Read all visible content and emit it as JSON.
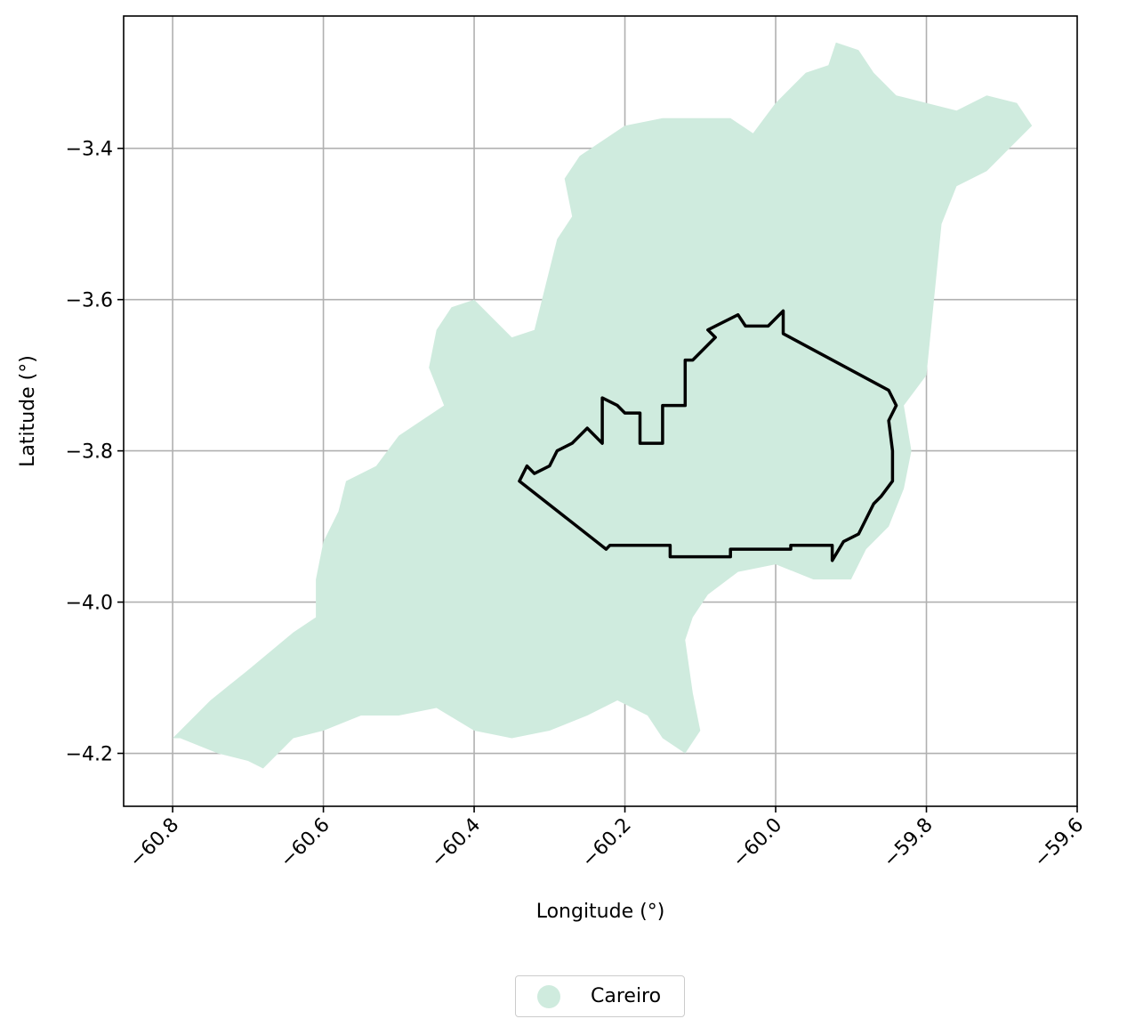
{
  "chart_data": {
    "type": "map",
    "xlabel": "Longitude (°)",
    "ylabel": "Latitude (°)",
    "xlim": [
      -60.865,
      -59.6
    ],
    "ylim": [
      -4.27,
      -3.225
    ],
    "x_ticks": [
      -60.8,
      -60.6,
      -60.4,
      -60.2,
      -60.0,
      -59.8,
      -59.6
    ],
    "x_tick_labels": [
      "−60.8",
      "−60.6",
      "−60.4",
      "−60.2",
      "−60.0",
      "−59.8",
      "−59.6"
    ],
    "y_ticks": [
      -3.4,
      -3.6,
      -3.8,
      -4.0,
      -4.2
    ],
    "y_tick_labels": [
      "−3.4",
      "−3.6",
      "−3.8",
      "−4.0",
      "−4.2"
    ],
    "grid": true,
    "legend_position": "bottom-center",
    "legend": [
      {
        "label": "Careiro",
        "color": "#cfebde"
      }
    ],
    "region_fill_color": "#cfebde",
    "boundary_color": "#000000",
    "region_outline": [
      [
        -60.8,
        -4.18
      ],
      [
        -60.79,
        -4.18
      ],
      [
        -60.74,
        -4.2
      ],
      [
        -60.7,
        -4.21
      ],
      [
        -60.68,
        -4.22
      ],
      [
        -60.64,
        -4.18
      ],
      [
        -60.6,
        -4.17
      ],
      [
        -60.55,
        -4.15
      ],
      [
        -60.5,
        -4.15
      ],
      [
        -60.45,
        -4.14
      ],
      [
        -60.4,
        -4.17
      ],
      [
        -60.35,
        -4.18
      ],
      [
        -60.3,
        -4.17
      ],
      [
        -60.25,
        -4.15
      ],
      [
        -60.21,
        -4.13
      ],
      [
        -60.17,
        -4.15
      ],
      [
        -60.15,
        -4.18
      ],
      [
        -60.12,
        -4.2
      ],
      [
        -60.1,
        -4.17
      ],
      [
        -60.11,
        -4.12
      ],
      [
        -60.12,
        -4.05
      ],
      [
        -60.11,
        -4.02
      ],
      [
        -60.09,
        -3.99
      ],
      [
        -60.05,
        -3.96
      ],
      [
        -60.0,
        -3.95
      ],
      [
        -59.95,
        -3.97
      ],
      [
        -59.9,
        -3.97
      ],
      [
        -59.88,
        -3.93
      ],
      [
        -59.85,
        -3.9
      ],
      [
        -59.83,
        -3.85
      ],
      [
        -59.82,
        -3.8
      ],
      [
        -59.83,
        -3.74
      ],
      [
        -59.8,
        -3.7
      ],
      [
        -59.79,
        -3.6
      ],
      [
        -59.78,
        -3.5
      ],
      [
        -59.76,
        -3.45
      ],
      [
        -59.72,
        -3.43
      ],
      [
        -59.68,
        -3.39
      ],
      [
        -59.66,
        -3.37
      ],
      [
        -59.68,
        -3.34
      ],
      [
        -59.72,
        -3.33
      ],
      [
        -59.76,
        -3.35
      ],
      [
        -59.8,
        -3.34
      ],
      [
        -59.84,
        -3.33
      ],
      [
        -59.87,
        -3.3
      ],
      [
        -59.89,
        -3.27
      ],
      [
        -59.92,
        -3.26
      ],
      [
        -59.93,
        -3.29
      ],
      [
        -59.96,
        -3.3
      ],
      [
        -60.0,
        -3.34
      ],
      [
        -60.03,
        -3.38
      ],
      [
        -60.06,
        -3.36
      ],
      [
        -60.1,
        -3.36
      ],
      [
        -60.15,
        -3.36
      ],
      [
        -60.2,
        -3.37
      ],
      [
        -60.23,
        -3.39
      ],
      [
        -60.26,
        -3.41
      ],
      [
        -60.28,
        -3.44
      ],
      [
        -60.27,
        -3.49
      ],
      [
        -60.29,
        -3.52
      ],
      [
        -60.3,
        -3.56
      ],
      [
        -60.31,
        -3.6
      ],
      [
        -60.32,
        -3.64
      ],
      [
        -60.35,
        -3.65
      ],
      [
        -60.4,
        -3.6
      ],
      [
        -60.43,
        -3.61
      ],
      [
        -60.45,
        -3.64
      ],
      [
        -60.46,
        -3.69
      ],
      [
        -60.44,
        -3.74
      ],
      [
        -60.47,
        -3.76
      ],
      [
        -60.5,
        -3.78
      ],
      [
        -60.53,
        -3.82
      ],
      [
        -60.57,
        -3.84
      ],
      [
        -60.58,
        -3.88
      ],
      [
        -60.6,
        -3.92
      ],
      [
        -60.61,
        -3.97
      ],
      [
        -60.61,
        -4.02
      ],
      [
        -60.64,
        -4.04
      ],
      [
        -60.7,
        -4.09
      ],
      [
        -60.75,
        -4.13
      ],
      [
        -60.8,
        -4.18
      ]
    ],
    "boundary_outline": [
      [
        -60.34,
        -3.84
      ],
      [
        -60.33,
        -3.82
      ],
      [
        -60.32,
        -3.83
      ],
      [
        -60.3,
        -3.82
      ],
      [
        -60.29,
        -3.8
      ],
      [
        -60.27,
        -3.79
      ],
      [
        -60.25,
        -3.77
      ],
      [
        -60.23,
        -3.79
      ],
      [
        -60.23,
        -3.73
      ],
      [
        -60.21,
        -3.74
      ],
      [
        -60.2,
        -3.75
      ],
      [
        -60.18,
        -3.75
      ],
      [
        -60.18,
        -3.79
      ],
      [
        -60.15,
        -3.79
      ],
      [
        -60.15,
        -3.74
      ],
      [
        -60.12,
        -3.74
      ],
      [
        -60.12,
        -3.68
      ],
      [
        -60.11,
        -3.68
      ],
      [
        -60.08,
        -3.65
      ],
      [
        -60.09,
        -3.64
      ],
      [
        -60.07,
        -3.63
      ],
      [
        -60.05,
        -3.62
      ],
      [
        -60.04,
        -3.635
      ],
      [
        -60.01,
        -3.635
      ],
      [
        -59.99,
        -3.615
      ],
      [
        -59.99,
        -3.645
      ],
      [
        -59.85,
        -3.72
      ],
      [
        -59.84,
        -3.74
      ],
      [
        -59.85,
        -3.76
      ],
      [
        -59.845,
        -3.8
      ],
      [
        -59.845,
        -3.84
      ],
      [
        -59.86,
        -3.86
      ],
      [
        -59.87,
        -3.87
      ],
      [
        -59.88,
        -3.89
      ],
      [
        -59.89,
        -3.91
      ],
      [
        -59.91,
        -3.92
      ],
      [
        -59.925,
        -3.945
      ],
      [
        -59.925,
        -3.925
      ],
      [
        -59.98,
        -3.925
      ],
      [
        -59.98,
        -3.93
      ],
      [
        -60.06,
        -3.93
      ],
      [
        -60.06,
        -3.94
      ],
      [
        -60.14,
        -3.94
      ],
      [
        -60.14,
        -3.925
      ],
      [
        -60.22,
        -3.925
      ],
      [
        -60.225,
        -3.93
      ],
      [
        -60.34,
        -3.84
      ]
    ]
  }
}
